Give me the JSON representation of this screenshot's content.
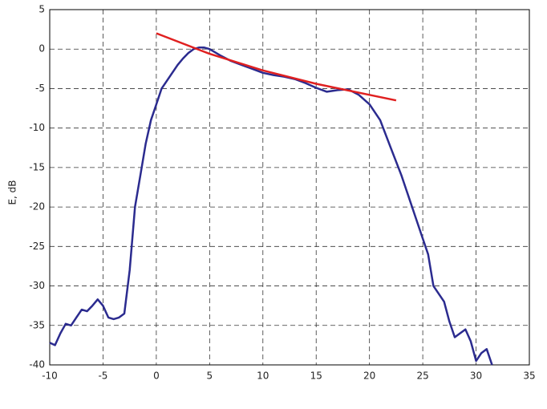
{
  "chart_data": {
    "type": "line",
    "ylabel": "E, dB",
    "xlim": [
      -10,
      35
    ],
    "xticks": [
      -10,
      -5,
      0,
      5,
      10,
      15,
      20,
      25,
      30,
      35
    ],
    "ylim": [
      -40,
      5
    ],
    "yticks": [
      -40,
      -35,
      -30,
      -25,
      -20,
      -15,
      -10,
      -5,
      0,
      5
    ],
    "grid": true,
    "series": [
      {
        "color": "#2b2b8f",
        "x": [
          -10,
          -9.5,
          -9,
          -8.5,
          -8,
          -7.5,
          -7,
          -6.5,
          -6,
          -5.5,
          -5,
          -4.5,
          -4,
          -3.5,
          -3,
          -2.5,
          -2,
          -1.5,
          -1,
          -0.5,
          0,
          0.5,
          1,
          1.5,
          2,
          2.5,
          3,
          3.5,
          4,
          4.5,
          5,
          6,
          7,
          8,
          9,
          10,
          11,
          12,
          13,
          14,
          15,
          16,
          17,
          18,
          19,
          20,
          21,
          22,
          23,
          24,
          25,
          25.5,
          26,
          27,
          27.5,
          28,
          28.5,
          29,
          29.5,
          30,
          30.5,
          31,
          31.5
        ],
        "values": [
          -37.2,
          -37.5,
          -36,
          -34.8,
          -35,
          -34,
          -33,
          -33.2,
          -32.5,
          -31.7,
          -32.5,
          -34,
          -34.2,
          -34,
          -33.5,
          -28,
          -20,
          -16,
          -12,
          -9,
          -7,
          -5,
          -4,
          -3,
          -2,
          -1.2,
          -0.5,
          0,
          0.2,
          0.2,
          0,
          -0.8,
          -1.5,
          -2,
          -2.5,
          -3,
          -3.3,
          -3.5,
          -3.8,
          -4.3,
          -4.9,
          -5.4,
          -5.2,
          -5.1,
          -5.8,
          -7,
          -9,
          -12.5,
          -16,
          -20,
          -24,
          -26,
          -30,
          -32,
          -34.5,
          -36.5,
          -36,
          -35.5,
          -37,
          -39.5,
          -38.5,
          -38,
          -40
        ]
      },
      {
        "color": "#e02020",
        "x": [
          0,
          5,
          10,
          15,
          20,
          22.5
        ],
        "values": [
          2,
          -0.6,
          -2.7,
          -4.4,
          -5.8,
          -6.5
        ]
      }
    ]
  }
}
